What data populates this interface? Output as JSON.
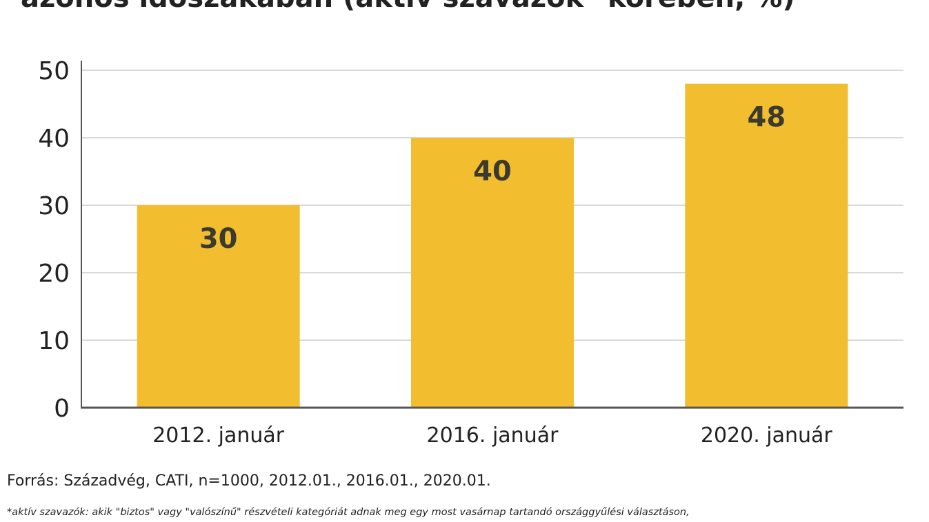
{
  "title": "azonos időszakában (aktív szavazók* körében, %)",
  "chart_data": {
    "type": "bar",
    "categories": [
      "2012. január",
      "2016. január",
      "2020. január"
    ],
    "values": [
      30,
      40,
      48
    ],
    "ylim": [
      0,
      50
    ],
    "yticks": [
      "0",
      "10",
      "20",
      "30",
      "40",
      "50"
    ],
    "grid": true,
    "bar_color": "#f2be30",
    "data_label_color": "#3a3a2e"
  },
  "source": "Forrás: Századvég, CATI, n=1000, 2012.01., 2016.01., 2020.01.",
  "footnote": "*aktív szavazók: akik \"biztos\" vagy \"valószínű\" részvételi kategóriát adnak meg egy most vasárnap tartandó országgyűlési választáson,"
}
